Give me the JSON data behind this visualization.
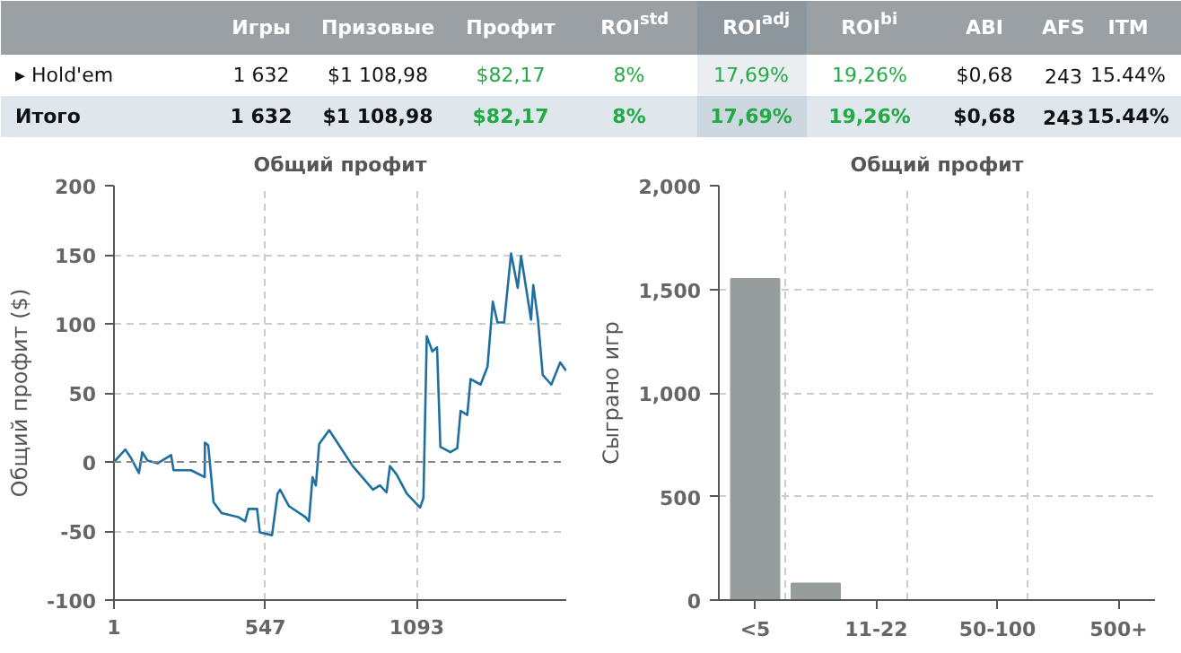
{
  "chart_data": [
    {
      "type": "other",
      "annotations": [
        "Игры",
        "Призовые",
        "Профит",
        "ROI$^{std}$",
        "ROI$^{adj}$",
        "ROI$^{bi}$",
        "ABI",
        "AFS",
        "ITM",
        "▸ Hold'em",
        "1 632",
        "$1 108,98",
        "$82,17",
        "8%",
        "17,69%",
        "19,26%",
        "$0,68",
        "243",
        "15.44%",
        "Итого",
        "1 632",
        "$1 108,98",
        "$82,17",
        "8%",
        "17,69%",
        "19,26%",
        "$0,68",
        "243",
        "15.44%"
      ]
    },
    {
      "type": "line",
      "title": "Общий профит",
      "ylabel": "Общий профит ($)",
      "xlim": [
        1,
        1632
      ],
      "xticks": [
        1,
        547,
        1093
      ],
      "ylim": [
        -100,
        200
      ],
      "yticks": [
        -100,
        -50,
        0,
        50,
        100,
        150,
        200
      ],
      "grid": true,
      "ref_lines": [
        {
          "axis": "y",
          "value": 0,
          "line_style": "dashed",
          "color": "#888888"
        }
      ],
      "series": [
        {
          "color": "#1f6fa0",
          "x": [
            1,
            42,
            62,
            91,
            103,
            122,
            158,
            207,
            216,
            279,
            328,
            329,
            341,
            360,
            389,
            450,
            474,
            486,
            517,
            527,
            571,
            591,
            600,
            632,
            692,
            704,
            717,
            729,
            741,
            777,
            862,
            935,
            960,
            984,
            996,
            1020,
            1057,
            1105,
            1117,
            1129,
            1149,
            1166,
            1178,
            1214,
            1239,
            1251,
            1275,
            1287,
            1323,
            1348,
            1367,
            1384,
            1408,
            1433,
            1457,
            1469,
            1505,
            1513,
            1530,
            1547,
            1578,
            1610,
            1632
          ],
          "values": [
            0,
            9,
            3,
            -8,
            7,
            1,
            -1,
            5,
            -6,
            -6,
            -11,
            14,
            12,
            -29,
            -37,
            -40,
            -43,
            -34,
            -34,
            -51,
            -53,
            -23,
            -20,
            -32,
            -40,
            -43,
            -11,
            -17,
            13,
            23,
            -3,
            -20,
            -17,
            -22,
            -3,
            -9,
            -23,
            -33,
            -26,
            91,
            80,
            83,
            11,
            7,
            10,
            37,
            34,
            60,
            56,
            69,
            116,
            101,
            101,
            151,
            126,
            149,
            103,
            128,
            103,
            63,
            56,
            72,
            66
          ]
        }
      ]
    },
    {
      "type": "bar",
      "title": "Общий профит",
      "ylabel": "Сыграно игр",
      "categories": [
        "<5",
        null,
        "11-22",
        null,
        "50-100",
        null,
        "500+"
      ],
      "values": [
        1550,
        80,
        0,
        0,
        0,
        0,
        0
      ],
      "color": "#979c9d",
      "ylim": [
        0,
        2000
      ],
      "yticks": [
        0,
        {
          "value": 500,
          "label": "500"
        },
        {
          "value": 1000,
          "label": "1,000"
        },
        {
          "value": 1500,
          "label": "1,500"
        },
        {
          "value": 2000,
          "label": "2,000"
        }
      ],
      "grid": true
    }
  ]
}
